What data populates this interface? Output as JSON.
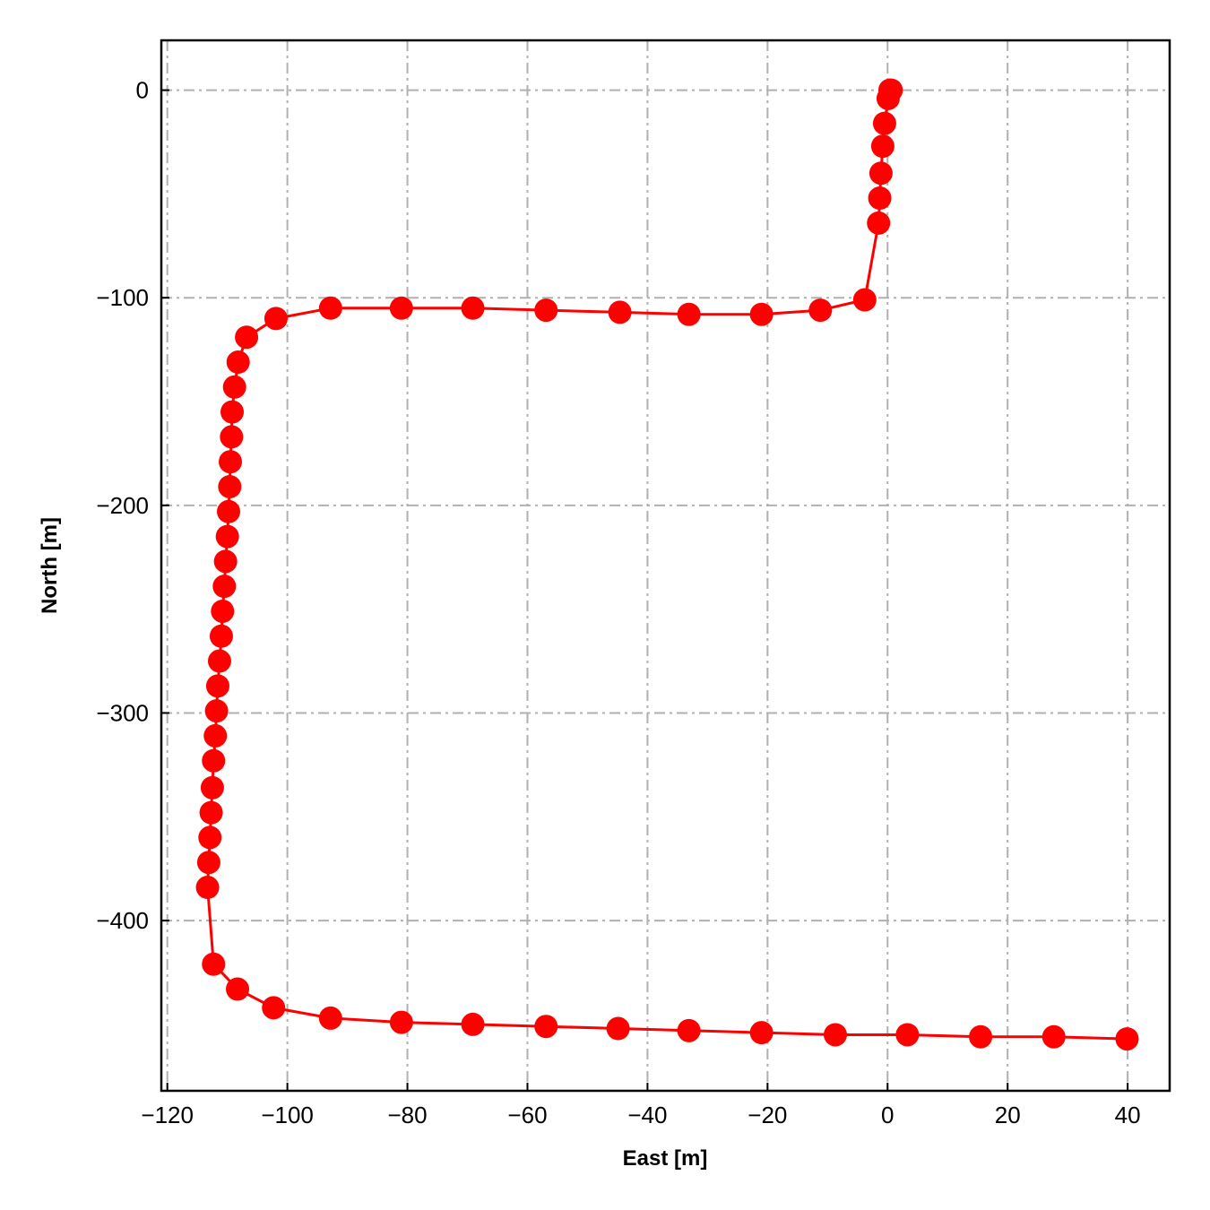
{
  "chart_data": {
    "type": "line",
    "title": "",
    "xlabel": "East [m]",
    "ylabel": "North [m]",
    "xlim": [
      -121,
      47
    ],
    "ylim": [
      -482,
      24
    ],
    "x_ticks": [
      -120,
      -100,
      -80,
      -60,
      -40,
      -20,
      0,
      20,
      40
    ],
    "x_tick_labels": [
      "−120",
      "−100",
      "−80",
      "−60",
      "−40",
      "−20",
      "0",
      "20",
      "40"
    ],
    "y_ticks": [
      0,
      -100,
      -200,
      -300,
      -400
    ],
    "y_tick_labels": [
      "0",
      "−100",
      "−200",
      "−300",
      "−400"
    ],
    "grid": true,
    "grid_style": "dash-dot",
    "legend": false,
    "series": [
      {
        "color": "#ff0000",
        "marker": "circle",
        "x": [
          0.6,
          0.4,
          0.1,
          -0.5,
          -0.8,
          -1.1,
          -1.3,
          -1.5,
          -3.8,
          -11.2,
          -21.0,
          -33.1,
          -44.6,
          -56.9,
          -69.1,
          -81.0,
          -92.8,
          -101.9,
          -106.8,
          -108.2,
          -108.8,
          -109.2,
          -109.3,
          -109.5,
          -109.6,
          -109.8,
          -110.0,
          -110.3,
          -110.5,
          -110.8,
          -111.0,
          -111.3,
          -111.6,
          -111.8,
          -112.0,
          -112.3,
          -112.5,
          -112.7,
          -112.9,
          -113.1,
          -113.3,
          -112.3,
          -108.3,
          -102.3,
          -92.8,
          -81.0,
          -69.1,
          -56.9,
          -44.9,
          -33.1,
          -21.0,
          -8.7,
          3.3,
          15.5,
          27.7,
          39.9
        ],
        "y": [
          0,
          0,
          -4,
          -16,
          -27,
          -40,
          -52,
          -64,
          -101,
          -106,
          -108,
          -108,
          -107,
          -106,
          -105,
          -105,
          -105,
          -110,
          -119,
          -131,
          -143,
          -155,
          -167,
          -179,
          -191,
          -203,
          -215,
          -227,
          -239,
          -251,
          -263,
          -275,
          -287,
          -299,
          -311,
          -323,
          -336,
          -348,
          -360,
          -372,
          -384,
          -421,
          -433,
          -442,
          -447,
          -449,
          -450,
          -451,
          -452,
          -453,
          -454,
          -455,
          -455,
          -456,
          -456,
          -457
        ]
      }
    ]
  }
}
